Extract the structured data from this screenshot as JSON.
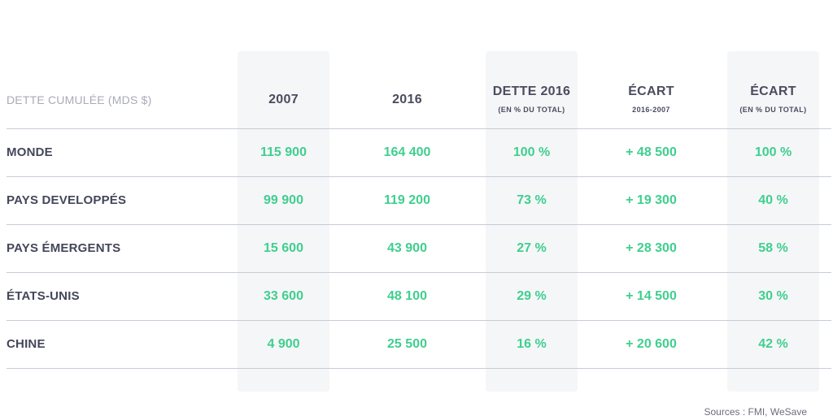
{
  "chart_data": {
    "type": "table",
    "header": {
      "label": "DETTE CUMULÉE (MDS $)",
      "columns": [
        {
          "title": "2007",
          "subtitle": ""
        },
        {
          "title": "2016",
          "subtitle": ""
        },
        {
          "title": "DETTE 2016",
          "subtitle": "(EN % DU TOTAL)"
        },
        {
          "title": "ÉCART",
          "subtitle": "2016-2007"
        },
        {
          "title": "ÉCART",
          "subtitle": "(EN % DU TOTAL)"
        }
      ]
    },
    "rows": [
      {
        "label": "MONDE",
        "values": [
          "115 900",
          "164 400",
          "100 %",
          "+ 48 500",
          "100 %"
        ]
      },
      {
        "label": "PAYS DEVELOPPÉS",
        "values": [
          "99 900",
          "119 200",
          "73 %",
          "+ 19 300",
          "40 %"
        ]
      },
      {
        "label": "PAYS ÉMERGENTS",
        "values": [
          "15 600",
          "43 900",
          "27 %",
          "+ 28 300",
          "58 %"
        ]
      },
      {
        "label": "ÉTATS-UNIS",
        "values": [
          "33 600",
          "48 100",
          "29 %",
          "+ 14 500",
          "30 %"
        ]
      },
      {
        "label": "CHINE",
        "values": [
          "4 900",
          "25 500",
          "16 %",
          "+ 20 600",
          "42 %"
        ]
      }
    ],
    "source": "Sources : FMI, WeSave"
  },
  "colors": {
    "value_green": "#3fcf8e",
    "label_dark": "#44465a",
    "header_gray": "#a9abb7",
    "band_bg": "#f5f6f8",
    "rule": "#c9cbd6"
  }
}
